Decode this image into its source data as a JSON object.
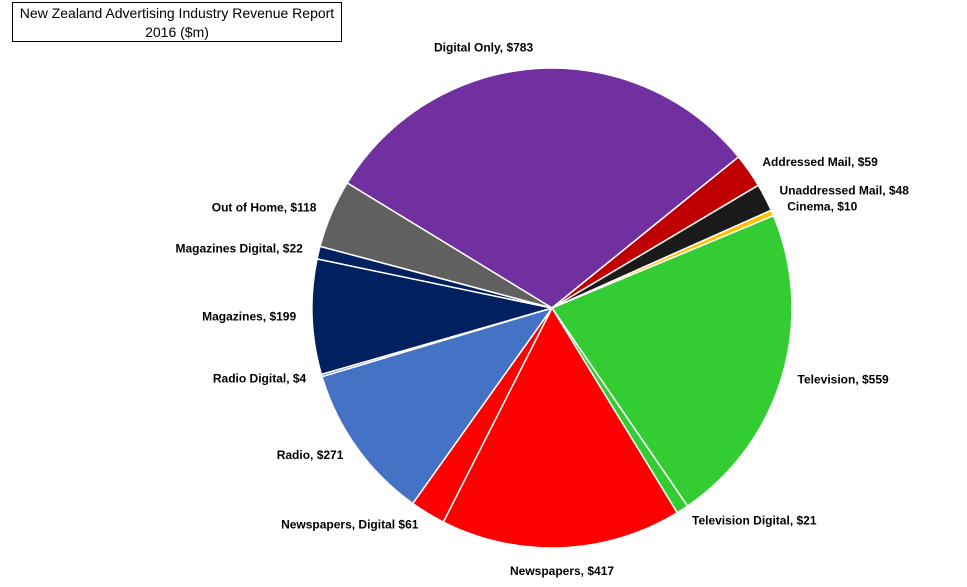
{
  "chart_data": {
    "type": "pie",
    "title": "New Zealand Advertising Industry Revenue Report 2016 ($m)",
    "values": [
      783,
      59,
      48,
      10,
      559,
      21,
      417,
      61,
      271,
      4,
      199,
      22,
      118
    ],
    "value_labels": [
      "Digital  Only, $783",
      "Addressed Mail, $59",
      "Unaddressed Mail, $48",
      "Cinema, $10",
      "Television, $559",
      "Television Digital, $21",
      "Newspapers, $417",
      "Newspapers, Digital $61",
      "Radio, $271",
      "Radio Digital, $4",
      "Magazines, $199",
      "Magazines Digital, $22",
      "Out of Home, $118"
    ],
    "colors": [
      "#7030a0",
      "#c00000",
      "#1a1a1a",
      "#ffc000",
      "#33cc33",
      "#33cc33",
      "#ff0000",
      "#ff0000",
      "#4472c4",
      "#4472c4",
      "#002060",
      "#002060",
      "#606060"
    ]
  }
}
